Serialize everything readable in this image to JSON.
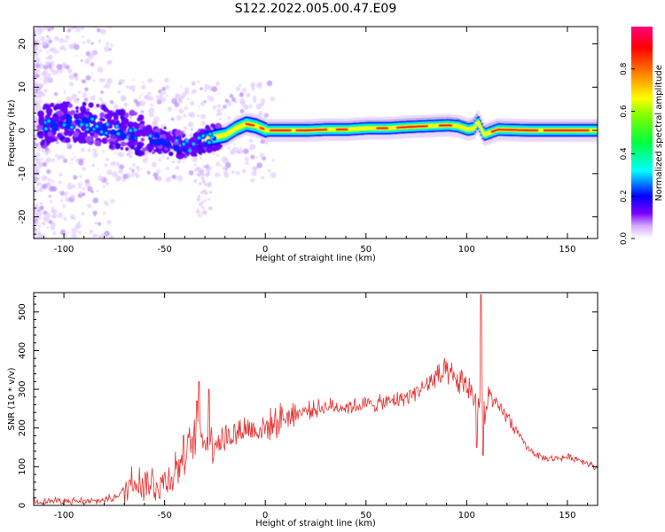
{
  "title": "S122.2022.005.00.47.E09",
  "chart_data": [
    {
      "type": "heatmap",
      "xlabel": "Height of straight line (km)",
      "ylabel": "Frequency (Hz)",
      "xlim": [
        -115,
        165
      ],
      "ylim": [
        -25,
        24
      ],
      "xticks": [
        -100,
        -50,
        0,
        50,
        100,
        150
      ],
      "yticks": [
        -20,
        -10,
        0,
        10,
        20
      ],
      "colorbar": {
        "label": "Normalized spectral amplitude",
        "range": [
          0,
          1
        ],
        "ticks": [
          0.0,
          0.2,
          0.4,
          0.6,
          0.8
        ]
      },
      "ridge": {
        "x": [
          -115,
          -105,
          -95,
          -85,
          -75,
          -65,
          -60,
          -55,
          -50,
          -45,
          -40,
          -35,
          -30,
          -25,
          -20,
          -15,
          -10,
          -5,
          0,
          10,
          20,
          30,
          40,
          50,
          60,
          70,
          80,
          90,
          95,
          100,
          103,
          105,
          108,
          115,
          130,
          150,
          165
        ],
        "freq": [
          0.5,
          1.5,
          2.0,
          1.5,
          0.5,
          -0.5,
          -1.5,
          -2.5,
          -2.0,
          -3.0,
          -3.5,
          -3.5,
          -2.0,
          -1.5,
          -1.0,
          0.5,
          1.5,
          1.0,
          0.0,
          0.0,
          0.0,
          0.2,
          0.2,
          0.5,
          0.5,
          0.8,
          1.0,
          1.2,
          1.0,
          0.2,
          0.5,
          2.0,
          -1.0,
          0.2,
          0.0,
          0.0,
          0.0
        ]
      }
    },
    {
      "type": "line",
      "xlabel": "Height of straight line (km)",
      "ylabel": "SNR (10 * v/v)",
      "xlim": [
        -115,
        165
      ],
      "ylim": [
        0,
        550
      ],
      "xticks": [
        -100,
        -50,
        0,
        50,
        100,
        150
      ],
      "yticks": [
        0,
        100,
        200,
        300,
        400,
        500
      ],
      "line_color": "#e83030",
      "x": [
        -115,
        -100,
        -85,
        -75,
        -70,
        -65,
        -60,
        -55,
        -50,
        -45,
        -40,
        -35,
        -32,
        -30,
        -25,
        -20,
        -15,
        -10,
        -5,
        0,
        5,
        10,
        20,
        30,
        40,
        50,
        60,
        70,
        80,
        85,
        90,
        95,
        100,
        104,
        107,
        108,
        109,
        111,
        115,
        120,
        125,
        130,
        135,
        140,
        145,
        150,
        155,
        160,
        165
      ],
      "snr": [
        10,
        12,
        10,
        20,
        40,
        70,
        60,
        55,
        60,
        90,
        130,
        170,
        200,
        160,
        170,
        175,
        185,
        200,
        195,
        200,
        215,
        230,
        245,
        255,
        255,
        260,
        265,
        280,
        310,
        330,
        340,
        320,
        310,
        280,
        260,
        400,
        200,
        290,
        255,
        230,
        190,
        150,
        130,
        120,
        122,
        125,
        120,
        110,
        95
      ],
      "spikes": [
        {
          "x": -34,
          "y": 270
        },
        {
          "x": -33,
          "y": 320
        },
        {
          "x": -28,
          "y": 300
        },
        {
          "x": 107,
          "y": 545
        },
        {
          "x": 108,
          "y": 130
        },
        {
          "x": 105,
          "y": 150
        }
      ]
    }
  ]
}
